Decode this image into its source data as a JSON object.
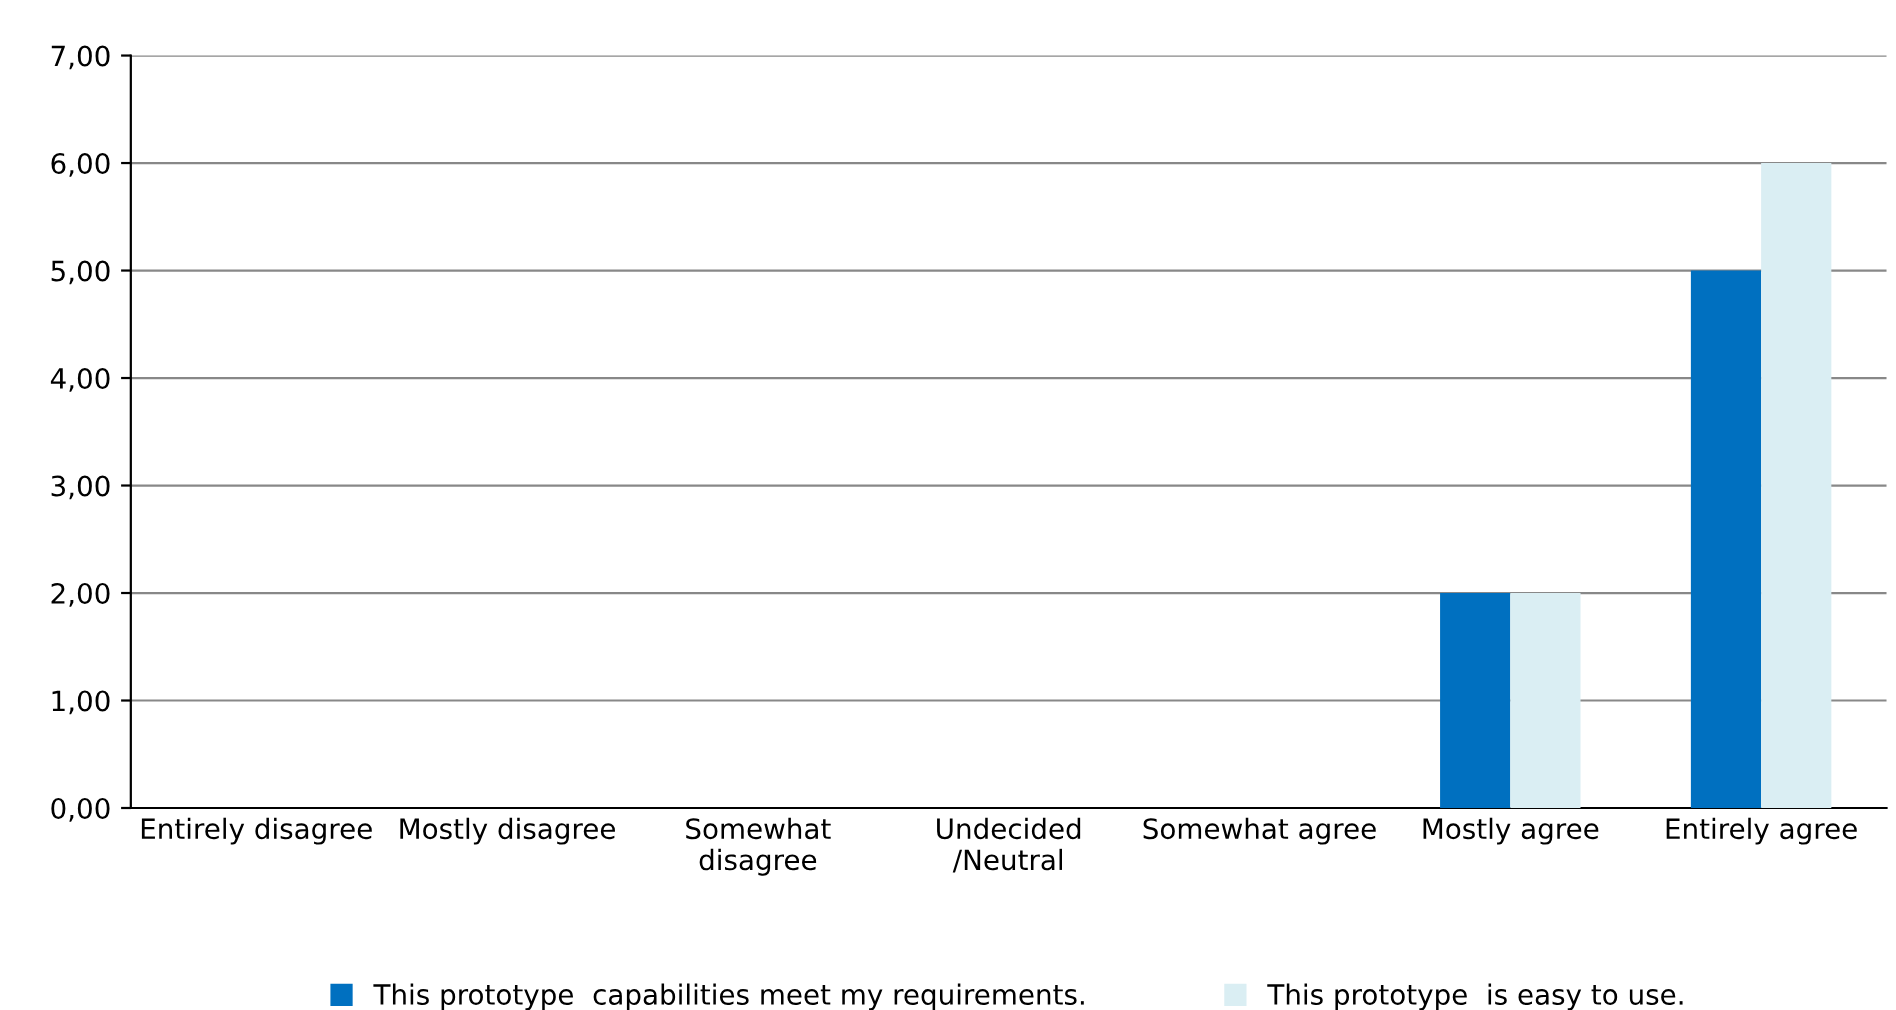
{
  "chart_data": {
    "type": "bar",
    "categories": [
      "Entirely disagree",
      "Mostly disagree",
      "Somewhat\ndisagree",
      "Undecided\n/Neutral",
      "Somewhat agree",
      "Mostly agree",
      "Entirely agree"
    ],
    "series": [
      {
        "name": "This prototype  capabilities meet my requirements.",
        "color": "#0070c0",
        "values": [
          0,
          0,
          0,
          0,
          0,
          2,
          5
        ]
      },
      {
        "name": "This prototype  is easy to use.",
        "color": "#daeef3",
        "values": [
          0,
          0,
          0,
          0,
          0,
          2,
          6
        ]
      }
    ],
    "ylim": [
      0,
      7
    ],
    "yticks": [
      {
        "value": 0,
        "label": "0,00"
      },
      {
        "value": 1,
        "label": "1,00"
      },
      {
        "value": 2,
        "label": "2,00"
      },
      {
        "value": 3,
        "label": "3,00"
      },
      {
        "value": 4,
        "label": "4,00"
      },
      {
        "value": 5,
        "label": "5,00"
      },
      {
        "value": 6,
        "label": "6,00"
      },
      {
        "value": 7,
        "label": "7,00"
      }
    ],
    "grid": "y",
    "legend": "bottom"
  }
}
